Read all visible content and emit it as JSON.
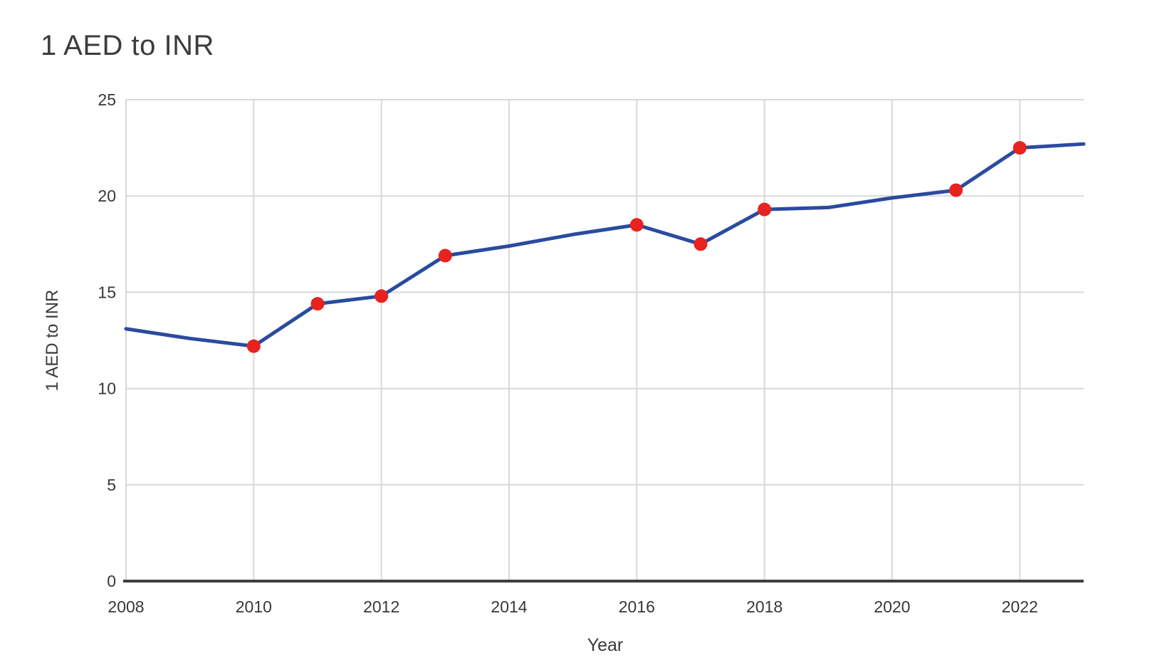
{
  "page": {
    "background_color": "#ffffff"
  },
  "chart_data": {
    "type": "line",
    "title": "1 AED to INR",
    "xlabel": "Year",
    "ylabel": "1 AED to INR",
    "x": [
      2008,
      2009,
      2010,
      2011,
      2012,
      2013,
      2014,
      2015,
      2016,
      2017,
      2018,
      2019,
      2020,
      2021,
      2022,
      2023
    ],
    "values": [
      13.1,
      12.6,
      12.2,
      14.4,
      14.8,
      16.9,
      17.4,
      18.0,
      18.5,
      17.5,
      19.3,
      19.4,
      19.9,
      20.3,
      22.5,
      22.7
    ],
    "marker_years": [
      2010,
      2011,
      2012,
      2013,
      2016,
      2017,
      2018,
      2021,
      2022
    ],
    "x_ticks": [
      2008,
      2010,
      2012,
      2014,
      2016,
      2018,
      2020,
      2022
    ],
    "y_ticks": [
      0,
      5,
      10,
      15,
      20,
      25
    ],
    "xlim": [
      2008,
      2023
    ],
    "ylim": [
      0,
      25
    ],
    "grid": true,
    "legend": "none",
    "colors": {
      "line": "#2a4b9e",
      "marker": "#e8221f",
      "gridline": "#d8d8d8",
      "axis_line": "#3f3f3f",
      "tick_text": "#373737",
      "title_text": "#3c3c3c"
    }
  }
}
